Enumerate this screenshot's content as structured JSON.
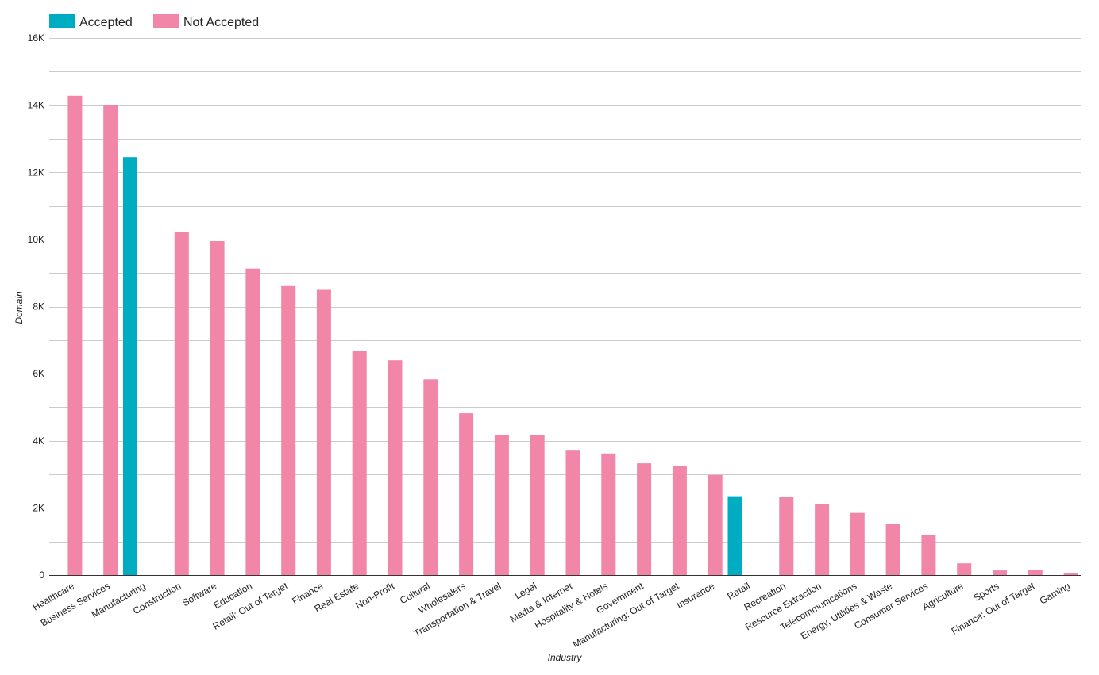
{
  "chart_data": {
    "type": "bar",
    "xlabel": "Industry",
    "ylabel": "Domain",
    "ylim": [
      0,
      16000
    ],
    "yticks": [
      {
        "value": 0,
        "label": "0"
      },
      {
        "value": 2000,
        "label": "2K"
      },
      {
        "value": 4000,
        "label": "4K"
      },
      {
        "value": 6000,
        "label": "6K"
      },
      {
        "value": 8000,
        "label": "8K"
      },
      {
        "value": 10000,
        "label": "10K"
      },
      {
        "value": 12000,
        "label": "12K"
      },
      {
        "value": 14000,
        "label": "14K"
      },
      {
        "value": 16000,
        "label": "16K"
      }
    ],
    "grid": true,
    "legend_position": "top-left",
    "categories": [
      "Healthcare",
      "Business Services",
      "Manufacturing",
      "Construction",
      "Software",
      "Education",
      "Retail: Out of Target",
      "Finance",
      "Real Estate",
      "Non-Profit",
      "Cultural",
      "Wholesalers",
      "Transportation & Travel",
      "Legal",
      "Media & Internet",
      "Hospitality & Hotels",
      "Government",
      "Manufacturing: Out of Target",
      "Insurance",
      "Retail",
      "Recreation",
      "Resource Extraction",
      "Telecommunications",
      "Energy, Utilities & Waste",
      "Consumer Services",
      "Agriculture",
      "Sports",
      "Finance: Out of Target",
      "Gaming"
    ],
    "series": [
      {
        "name": "Accepted",
        "color": "#00acc1",
        "values": [
          0,
          0,
          12450,
          0,
          0,
          0,
          0,
          0,
          0,
          0,
          0,
          0,
          0,
          0,
          0,
          0,
          0,
          0,
          0,
          2350,
          0,
          0,
          0,
          0,
          0,
          0,
          0,
          0,
          0
        ]
      },
      {
        "name": "Not Accepted",
        "color": "#f286a9",
        "values": [
          14280,
          14000,
          0,
          10230,
          9950,
          9130,
          8630,
          8520,
          6670,
          6400,
          5830,
          4820,
          4180,
          4160,
          3730,
          3620,
          3330,
          3250,
          2980,
          0,
          2320,
          2120,
          1850,
          1530,
          1190,
          350,
          140,
          150,
          70
        ]
      }
    ]
  }
}
